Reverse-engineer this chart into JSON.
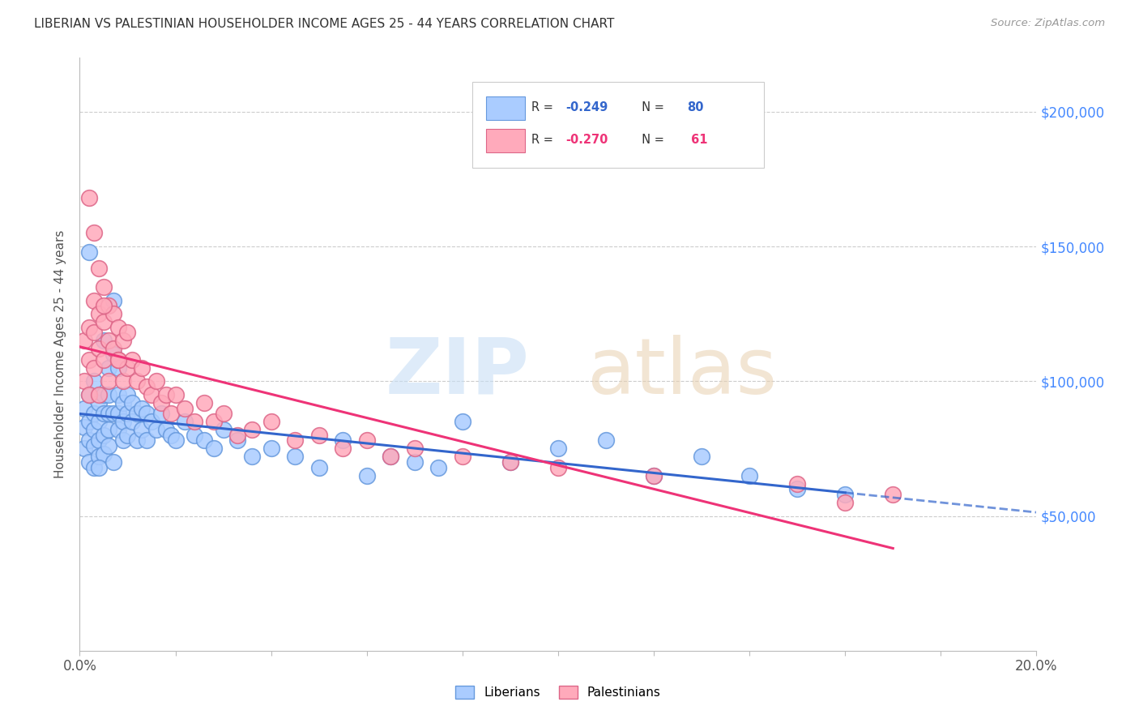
{
  "title": "LIBERIAN VS PALESTINIAN HOUSEHOLDER INCOME AGES 25 - 44 YEARS CORRELATION CHART",
  "source": "Source: ZipAtlas.com",
  "ylabel": "Householder Income Ages 25 - 44 years",
  "x_min": 0.0,
  "x_max": 0.2,
  "y_min": 0,
  "y_max": 220000,
  "y_ticks": [
    50000,
    100000,
    150000,
    200000
  ],
  "y_tick_labels": [
    "$50,000",
    "$100,000",
    "$150,000",
    "$200,000"
  ],
  "x_ticks": [
    0.0,
    0.02,
    0.04,
    0.06,
    0.08,
    0.1,
    0.12,
    0.14,
    0.16,
    0.18,
    0.2
  ],
  "x_tick_labels_show": [
    "0.0%",
    "",
    "",
    "",
    "",
    "",
    "",
    "",
    "",
    "",
    "20.0%"
  ],
  "liberian_color": "#aaccff",
  "liberian_edge": "#6699dd",
  "palestinian_color": "#ffaabb",
  "palestinian_edge": "#dd6688",
  "trend_liberian_color": "#3366cc",
  "trend_palestinian_color": "#ee3377",
  "background_color": "#ffffff",
  "liberian_x": [
    0.001,
    0.001,
    0.001,
    0.002,
    0.002,
    0.002,
    0.002,
    0.003,
    0.003,
    0.003,
    0.003,
    0.003,
    0.004,
    0.004,
    0.004,
    0.004,
    0.005,
    0.005,
    0.005,
    0.005,
    0.005,
    0.006,
    0.006,
    0.006,
    0.006,
    0.006,
    0.007,
    0.007,
    0.007,
    0.008,
    0.008,
    0.008,
    0.008,
    0.009,
    0.009,
    0.009,
    0.01,
    0.01,
    0.01,
    0.011,
    0.011,
    0.012,
    0.012,
    0.013,
    0.013,
    0.014,
    0.014,
    0.015,
    0.016,
    0.017,
    0.018,
    0.019,
    0.02,
    0.022,
    0.024,
    0.026,
    0.028,
    0.03,
    0.033,
    0.036,
    0.04,
    0.045,
    0.05,
    0.055,
    0.06,
    0.065,
    0.07,
    0.075,
    0.08,
    0.09,
    0.1,
    0.11,
    0.12,
    0.13,
    0.14,
    0.15,
    0.16,
    0.002,
    0.004,
    0.007
  ],
  "liberian_y": [
    90000,
    83000,
    75000,
    95000,
    85000,
    78000,
    70000,
    88000,
    82000,
    76000,
    68000,
    100000,
    85000,
    78000,
    72000,
    92000,
    95000,
    88000,
    80000,
    73000,
    115000,
    105000,
    95000,
    88000,
    82000,
    76000,
    130000,
    110000,
    88000,
    105000,
    95000,
    88000,
    82000,
    92000,
    85000,
    78000,
    95000,
    88000,
    80000,
    92000,
    85000,
    88000,
    78000,
    90000,
    82000,
    88000,
    78000,
    85000,
    82000,
    88000,
    82000,
    80000,
    78000,
    85000,
    80000,
    78000,
    75000,
    82000,
    78000,
    72000,
    75000,
    72000,
    68000,
    78000,
    65000,
    72000,
    70000,
    68000,
    85000,
    70000,
    75000,
    78000,
    65000,
    72000,
    65000,
    60000,
    58000,
    148000,
    68000,
    70000
  ],
  "palestinian_x": [
    0.001,
    0.001,
    0.002,
    0.002,
    0.002,
    0.003,
    0.003,
    0.003,
    0.004,
    0.004,
    0.004,
    0.005,
    0.005,
    0.005,
    0.006,
    0.006,
    0.006,
    0.007,
    0.007,
    0.008,
    0.008,
    0.009,
    0.009,
    0.01,
    0.01,
    0.011,
    0.012,
    0.013,
    0.014,
    0.015,
    0.016,
    0.017,
    0.018,
    0.019,
    0.02,
    0.022,
    0.024,
    0.026,
    0.028,
    0.03,
    0.033,
    0.036,
    0.04,
    0.045,
    0.05,
    0.055,
    0.06,
    0.065,
    0.07,
    0.08,
    0.09,
    0.1,
    0.12,
    0.15,
    0.17,
    0.002,
    0.003,
    0.004,
    0.005,
    0.008,
    0.16
  ],
  "palestinian_y": [
    115000,
    100000,
    120000,
    108000,
    95000,
    130000,
    118000,
    105000,
    125000,
    112000,
    95000,
    135000,
    122000,
    108000,
    128000,
    115000,
    100000,
    125000,
    112000,
    120000,
    108000,
    115000,
    100000,
    118000,
    105000,
    108000,
    100000,
    105000,
    98000,
    95000,
    100000,
    92000,
    95000,
    88000,
    95000,
    90000,
    85000,
    92000,
    85000,
    88000,
    80000,
    82000,
    85000,
    78000,
    80000,
    75000,
    78000,
    72000,
    75000,
    72000,
    70000,
    68000,
    65000,
    62000,
    58000,
    168000,
    155000,
    142000,
    128000,
    108000,
    55000
  ]
}
